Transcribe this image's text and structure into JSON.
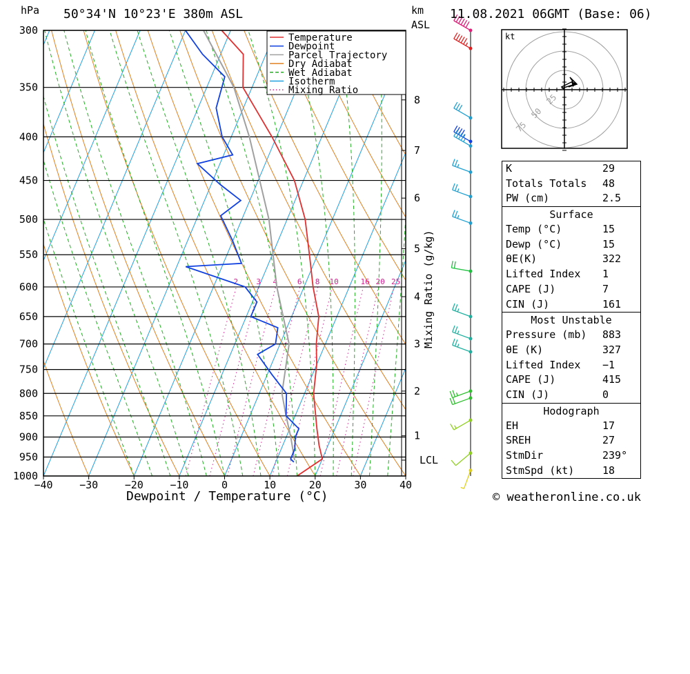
{
  "header": {
    "units_left": "hPa",
    "location": "50°34'N  10°23'E  380m  ASL",
    "units_km": "km",
    "units_asl": "ASL",
    "datetime": "11.08.2021  06GMT  (Base: 06)"
  },
  "footer": {
    "copyright": "© weatheronline.co.uk"
  },
  "chart_data": {
    "type": "skew-t",
    "xlabel": "Dewpoint / Temperature (°C)",
    "ylabel_right": "Mixing Ratio (g/kg)",
    "x_ticks": [
      "−40",
      "−30",
      "−20",
      "−10",
      "0",
      "10",
      "20",
      "30",
      "40"
    ],
    "xlim": [
      -40,
      40
    ],
    "pressure_levels": [
      300,
      350,
      400,
      450,
      500,
      550,
      600,
      650,
      700,
      750,
      800,
      850,
      900,
      950,
      1000
    ],
    "height_km_ticks": [
      {
        "km": 8,
        "p": 362
      },
      {
        "km": 7,
        "p": 415
      },
      {
        "km": 6,
        "p": 472
      },
      {
        "km": 5,
        "p": 541
      },
      {
        "km": 4,
        "p": 616
      },
      {
        "km": 3,
        "p": 700
      },
      {
        "km": 2,
        "p": 795
      },
      {
        "km": 1,
        "p": 897
      }
    ],
    "lcl": {
      "label": "LCL",
      "p": 958
    },
    "mixing_ratio_labels": [
      "2",
      "3",
      "4",
      "6",
      "8",
      "10",
      "16",
      "20",
      "25"
    ],
    "legend": [
      {
        "name": "Temperature",
        "color": "#e03030",
        "style": "solid"
      },
      {
        "name": "Dewpoint",
        "color": "#1040e0",
        "style": "solid"
      },
      {
        "name": "Parcel Trajectory",
        "color": "#a0a0a0",
        "style": "solid"
      },
      {
        "name": "Dry Adiabat",
        "color": "#e08020",
        "style": "solid"
      },
      {
        "name": "Wet Adiabat",
        "color": "#20b020",
        "style": "dashed"
      },
      {
        "name": "Isotherm",
        "color": "#20a0e0",
        "style": "solid"
      },
      {
        "name": "Mixing Ratio",
        "color": "#d02090",
        "style": "dotted"
      }
    ],
    "temperature": [
      [
        1000,
        16
      ],
      [
        955,
        20
      ],
      [
        920,
        18
      ],
      [
        880,
        16
      ],
      [
        800,
        12
      ],
      [
        740,
        10
      ],
      [
        700,
        8
      ],
      [
        650,
        6
      ],
      [
        600,
        2
      ],
      [
        560,
        -1
      ],
      [
        500,
        -6
      ],
      [
        450,
        -12
      ],
      [
        400,
        -21
      ],
      [
        350,
        -32
      ],
      [
        320,
        -35
      ],
      [
        300,
        -42
      ]
    ],
    "dewpoint": [
      [
        963,
        14
      ],
      [
        955,
        13
      ],
      [
        930,
        13
      ],
      [
        900,
        12
      ],
      [
        880,
        12
      ],
      [
        850,
        8
      ],
      [
        800,
        6
      ],
      [
        760,
        1
      ],
      [
        720,
        -4
      ],
      [
        700,
        -1
      ],
      [
        670,
        -2
      ],
      [
        650,
        -9
      ],
      [
        625,
        -9
      ],
      [
        600,
        -13
      ],
      [
        568,
        -28
      ],
      [
        563,
        -16
      ],
      [
        530,
        -20
      ],
      [
        495,
        -25
      ],
      [
        475,
        -22
      ],
      [
        455,
        -28
      ],
      [
        430,
        -35
      ],
      [
        420,
        -28
      ],
      [
        400,
        -32
      ],
      [
        370,
        -36
      ],
      [
        340,
        -37
      ],
      [
        320,
        -44
      ],
      [
        300,
        -50
      ]
    ],
    "parcel": [
      [
        958,
        14
      ],
      [
        900,
        11
      ],
      [
        850,
        8
      ],
      [
        800,
        5
      ],
      [
        700,
        2
      ],
      [
        600,
        -6
      ],
      [
        500,
        -14
      ],
      [
        400,
        -26
      ],
      [
        350,
        -34
      ],
      [
        300,
        -46
      ]
    ],
    "wind_barbs": [
      {
        "p": 300,
        "dir": 300,
        "kt": 60,
        "color": "#e0207a"
      },
      {
        "p": 315,
        "dir": 300,
        "kt": 55,
        "color": "#e02020"
      },
      {
        "p": 380,
        "dir": 300,
        "kt": 30,
        "color": "#20a0d0"
      },
      {
        "p": 405,
        "dir": 300,
        "kt": 45,
        "color": "#1040e0"
      },
      {
        "p": 410,
        "dir": 300,
        "kt": 45,
        "color": "#20a0d0"
      },
      {
        "p": 440,
        "dir": 290,
        "kt": 25,
        "color": "#20a0d0"
      },
      {
        "p": 470,
        "dir": 290,
        "kt": 25,
        "color": "#20a0d0"
      },
      {
        "p": 505,
        "dir": 290,
        "kt": 25,
        "color": "#20a0d0"
      },
      {
        "p": 575,
        "dir": 280,
        "kt": 20,
        "color": "#20c040"
      },
      {
        "p": 650,
        "dir": 290,
        "kt": 25,
        "color": "#20b0a0"
      },
      {
        "p": 690,
        "dir": 290,
        "kt": 25,
        "color": "#20b0a0"
      },
      {
        "p": 715,
        "dir": 290,
        "kt": 25,
        "color": "#20b0a0"
      },
      {
        "p": 795,
        "dir": 250,
        "kt": 25,
        "color": "#30c030"
      },
      {
        "p": 810,
        "dir": 250,
        "kt": 20,
        "color": "#30c030"
      },
      {
        "p": 860,
        "dir": 240,
        "kt": 15,
        "color": "#90d020"
      },
      {
        "p": 940,
        "dir": 230,
        "kt": 10,
        "color": "#90d020"
      },
      {
        "p": 985,
        "dir": 200,
        "kt": 5,
        "color": "#e0d020"
      }
    ]
  },
  "hodograph": {
    "unit_label": "kt",
    "ring_labels": [
      "25",
      "50",
      "75"
    ]
  },
  "indices": {
    "top": [
      {
        "label": "K",
        "value": "29"
      },
      {
        "label": "Totals Totals",
        "value": "48"
      },
      {
        "label": "PW (cm)",
        "value": "2.5"
      }
    ],
    "surface": {
      "title": "Surface",
      "rows": [
        {
          "label": "Temp (°C)",
          "value": "15"
        },
        {
          "label": "Dewp (°C)",
          "value": "15"
        },
        {
          "label": "θE(K)",
          "value": "322"
        },
        {
          "label": "Lifted Index",
          "value": "1"
        },
        {
          "label": "CAPE (J)",
          "value": "7"
        },
        {
          "label": "CIN (J)",
          "value": "161"
        }
      ]
    },
    "most_unstable": {
      "title": "Most Unstable",
      "rows": [
        {
          "label": "Pressure (mb)",
          "value": "883"
        },
        {
          "label": "θE (K)",
          "value": "327"
        },
        {
          "label": "Lifted Index",
          "value": "−1"
        },
        {
          "label": "CAPE (J)",
          "value": "415"
        },
        {
          "label": "CIN (J)",
          "value": "0"
        }
      ]
    },
    "hodograph": {
      "title": "Hodograph",
      "rows": [
        {
          "label": "EH",
          "value": "17"
        },
        {
          "label": "SREH",
          "value": "27"
        },
        {
          "label": "StmDir",
          "value": "239°"
        },
        {
          "label": "StmSpd (kt)",
          "value": "18"
        }
      ]
    }
  }
}
